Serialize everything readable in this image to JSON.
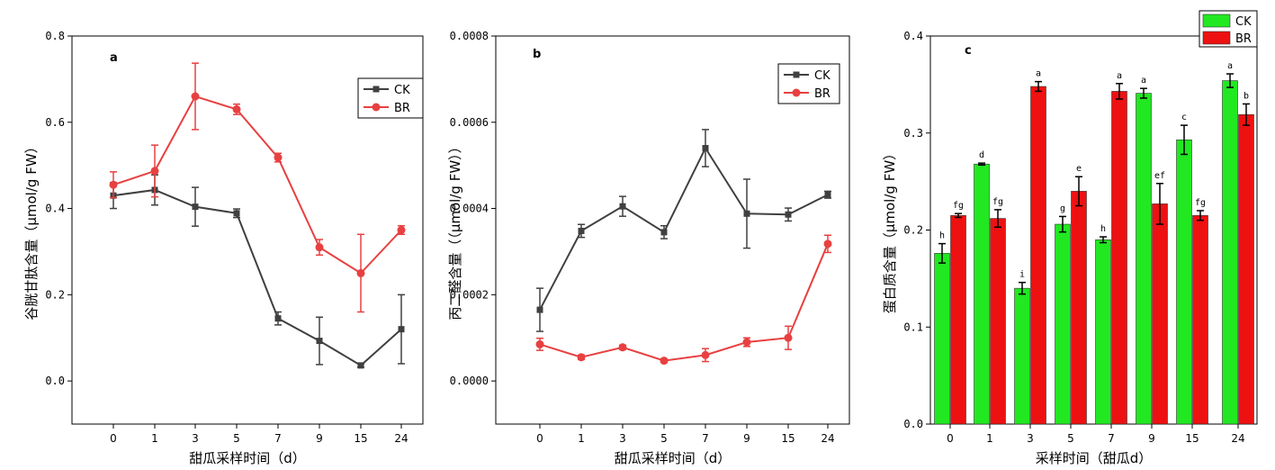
{
  "chart_data": [
    {
      "type": "line",
      "panel": "a",
      "categories": [
        "0",
        "1",
        "3",
        "5",
        "7",
        "9",
        "15",
        "24"
      ],
      "ylabel": "谷胱甘肽含量（μmol/g FW）",
      "xlabel": "甜瓜采样时间（d）",
      "ylim": [
        -0.1,
        0.8
      ],
      "yticks": [
        "0.0",
        "0.2",
        "0.4",
        "0.6",
        "0.8"
      ],
      "legend_position": "top-right",
      "series": [
        {
          "name": "CK",
          "color": "#404040",
          "marker": "square",
          "values": [
            0.43,
            0.443,
            0.404,
            0.389,
            0.145,
            0.093,
            0.036,
            0.12
          ],
          "errors": [
            0.03,
            0.035,
            0.045,
            0.01,
            0.015,
            0.055,
            0.004,
            0.08
          ]
        },
        {
          "name": "BR",
          "color": "#e84040",
          "marker": "circle",
          "values": [
            0.455,
            0.487,
            0.66,
            0.63,
            0.518,
            0.31,
            0.25,
            0.35
          ],
          "errors": [
            0.03,
            0.06,
            0.077,
            0.012,
            0.01,
            0.018,
            0.09,
            0.01
          ]
        }
      ]
    },
    {
      "type": "line",
      "panel": "b",
      "categories": [
        "0",
        "1",
        "3",
        "5",
        "7",
        "9",
        "15",
        "24"
      ],
      "ylabel": "丙二醛含量（（μmol/g FW））",
      "xlabel": "甜瓜采样时间（d）",
      "ylim": [
        -0.0001,
        0.0008
      ],
      "yticks": [
        "0.0000",
        "0.0002",
        "0.0004",
        "0.0006",
        "0.0008"
      ],
      "legend_position": "top-right",
      "series": [
        {
          "name": "CK",
          "color": "#404040",
          "marker": "square",
          "values": [
            0.000165,
            0.000348,
            0.000405,
            0.000345,
            0.00054,
            0.000388,
            0.000386,
            0.000432
          ],
          "errors": [
            5e-05,
            1.5e-05,
            2.3e-05,
            1.5e-05,
            4.3e-05,
            8e-05,
            1.5e-05,
            8e-06
          ]
        },
        {
          "name": "BR",
          "color": "#e84040",
          "marker": "circle",
          "values": [
            8.5e-05,
            5.5e-05,
            7.8e-05,
            4.7e-05,
            6e-05,
            9e-05,
            0.0001,
            0.000318
          ],
          "errors": [
            1.4e-05,
            5e-06,
            5e-06,
            4e-06,
            1.5e-05,
            1e-05,
            2.7e-05,
            2e-05
          ]
        }
      ]
    },
    {
      "type": "bar",
      "panel": "c",
      "categories": [
        "0",
        "1",
        "3",
        "5",
        "7",
        "9",
        "15",
        "24"
      ],
      "ylabel": "蛋白质含量（μmol/g FW）",
      "xlabel": "采样时间（甜瓜d）",
      "ylim": [
        0.0,
        0.4
      ],
      "yticks": [
        "0.0",
        "0.1",
        "0.2",
        "0.3",
        "0.4"
      ],
      "legend_position": "top-right",
      "series": [
        {
          "name": "CK",
          "color": "#22e822",
          "values": [
            0.176,
            0.268,
            0.14,
            0.206,
            0.19,
            0.341,
            0.293,
            0.354
          ],
          "errors": [
            0.01,
            0.001,
            0.006,
            0.008,
            0.003,
            0.005,
            0.015,
            0.007
          ],
          "letters": [
            "h",
            "d",
            "i",
            "g",
            "h",
            "a",
            "c",
            "a"
          ]
        },
        {
          "name": "BR",
          "color": "#ee1111",
          "values": [
            0.215,
            0.212,
            0.348,
            0.24,
            0.343,
            0.227,
            0.215,
            0.319
          ],
          "errors": [
            0.002,
            0.009,
            0.005,
            0.015,
            0.008,
            0.021,
            0.005,
            0.011
          ],
          "letters": [
            "fg",
            "fg",
            "a",
            "e",
            "a",
            "ef",
            "fg",
            "b"
          ]
        }
      ]
    }
  ]
}
